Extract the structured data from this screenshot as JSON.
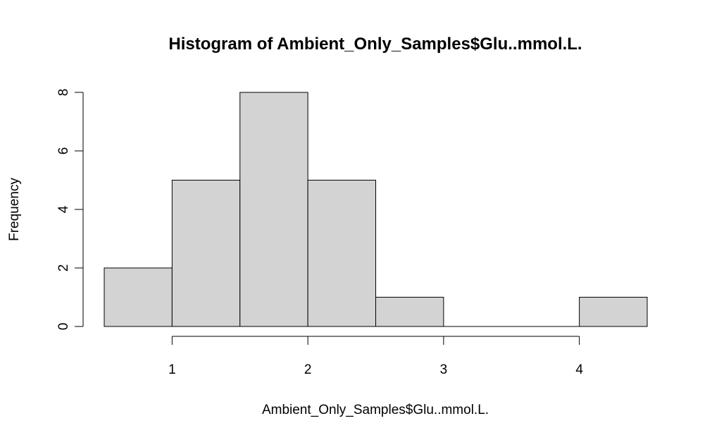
{
  "chart_data": {
    "type": "bar",
    "title": "Histogram of Ambient_Only_Samples$Glu..mmol.L.",
    "xlabel": "Ambient_Only_Samples$Glu..mmol.L.",
    "ylabel": "Frequency",
    "bins": [
      {
        "start": 0.5,
        "end": 1.0,
        "count": 2
      },
      {
        "start": 1.0,
        "end": 1.5,
        "count": 5
      },
      {
        "start": 1.5,
        "end": 2.0,
        "count": 8
      },
      {
        "start": 2.0,
        "end": 2.5,
        "count": 5
      },
      {
        "start": 2.5,
        "end": 3.0,
        "count": 1
      },
      {
        "start": 3.0,
        "end": 3.5,
        "count": 0
      },
      {
        "start": 3.5,
        "end": 4.0,
        "count": 0
      },
      {
        "start": 4.0,
        "end": 4.5,
        "count": 1
      }
    ],
    "xlim": [
      0.5,
      4.5
    ],
    "ylim": [
      0,
      8
    ],
    "x_ticks": [
      1,
      2,
      3,
      4
    ],
    "x_tick_labels": [
      "1",
      "2",
      "3",
      "4"
    ],
    "y_ticks": [
      0,
      2,
      4,
      6,
      8
    ],
    "y_tick_labels": [
      "0",
      "2",
      "4",
      "6",
      "8"
    ],
    "bar_color": "#d3d3d3",
    "grid": false,
    "legend": "none"
  }
}
